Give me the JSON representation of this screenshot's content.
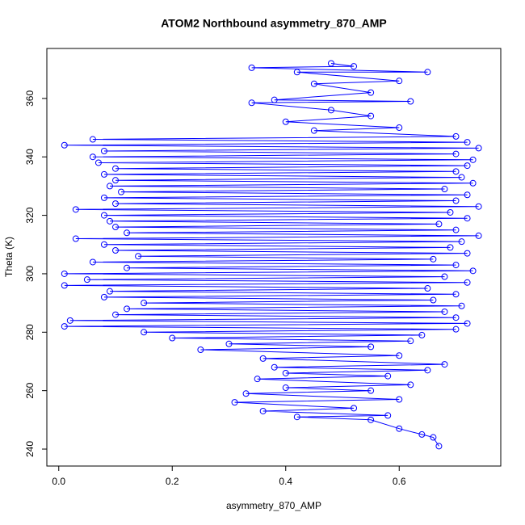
{
  "chart_data": {
    "type": "line",
    "marker": "circle",
    "title": "ATOM2 Northbound asymmetry_870_AMP",
    "xlabel": "asymmetry_870_AMP",
    "ylabel": "Theta (K)",
    "color": "#0000ff",
    "x": [
      0.67,
      0.66,
      0.64,
      0.6,
      0.55,
      0.42,
      0.58,
      0.36,
      0.52,
      0.31,
      0.6,
      0.33,
      0.55,
      0.4,
      0.62,
      0.35,
      0.58,
      0.4,
      0.65,
      0.38,
      0.68,
      0.36,
      0.6,
      0.25,
      0.55,
      0.3,
      0.62,
      0.2,
      0.64,
      0.15,
      0.7,
      0.01,
      0.72,
      0.02,
      0.7,
      0.1,
      0.68,
      0.12,
      0.71,
      0.15,
      0.66,
      0.08,
      0.7,
      0.09,
      0.65,
      0.01,
      0.72,
      0.05,
      0.68,
      0.01,
      0.73,
      0.12,
      0.7,
      0.06,
      0.66,
      0.14,
      0.72,
      0.1,
      0.69,
      0.08,
      0.71,
      0.03,
      0.74,
      0.12,
      0.7,
      0.1,
      0.67,
      0.09,
      0.72,
      0.08,
      0.69,
      0.03,
      0.74,
      0.1,
      0.7,
      0.08,
      0.72,
      0.11,
      0.68,
      0.09,
      0.73,
      0.1,
      0.71,
      0.08,
      0.7,
      0.1,
      0.72,
      0.07,
      0.73,
      0.06,
      0.7,
      0.08,
      0.74,
      0.01,
      0.72,
      0.06,
      0.7,
      0.45,
      0.6,
      0.4,
      0.55,
      0.48,
      0.34,
      0.62,
      0.38,
      0.55,
      0.45,
      0.6,
      0.42,
      0.65,
      0.34,
      0.52,
      0.48
    ],
    "values": [
      241,
      244,
      245,
      247,
      250,
      251,
      251.5,
      253,
      254,
      256,
      257,
      259,
      260,
      261,
      262,
      264,
      265,
      266,
      267,
      268,
      269,
      271,
      272,
      274,
      275,
      276,
      277,
      278,
      279,
      280,
      281,
      282,
      283,
      284,
      285,
      286,
      287,
      288,
      289,
      290,
      291,
      292,
      293,
      294,
      295,
      296,
      297,
      298,
      299,
      300,
      301,
      302,
      303,
      304,
      305,
      306,
      307,
      308,
      309,
      310,
      311,
      312,
      313,
      314,
      315,
      316,
      317,
      318,
      319,
      320,
      321,
      322,
      323,
      324,
      325,
      326,
      327,
      328,
      329,
      330,
      331,
      332,
      333,
      334,
      335,
      336,
      337,
      338,
      339,
      340,
      341,
      342,
      343,
      344,
      345,
      346,
      347,
      349,
      350,
      352,
      354,
      356,
      358.5,
      359,
      359.5,
      362,
      365,
      366,
      369,
      369,
      370.5,
      371,
      372
    ],
    "xlim": [
      -0.021,
      0.779
    ],
    "ylim": [
      234.2,
      377.1
    ],
    "xticks": [
      {
        "value": 0,
        "label": "0.0"
      },
      0.2,
      0.4,
      0.6
    ],
    "yticks": [
      240,
      260,
      280,
      300,
      320,
      340,
      360
    ]
  }
}
